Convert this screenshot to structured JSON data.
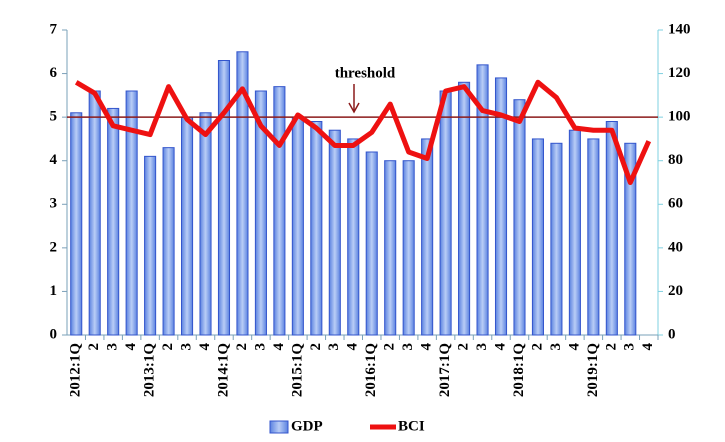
{
  "chart_data": {
    "type": "bar-line",
    "categories": [
      "2012:1Q",
      "2",
      "3",
      "4",
      "2013:1Q",
      "2",
      "3",
      "4",
      "2014:1Q",
      "2",
      "3",
      "4",
      "2015:1Q",
      "2",
      "3",
      "4",
      "2016:1Q",
      "2",
      "3",
      "4",
      "2017:1Q",
      "2",
      "3",
      "4",
      "2018:1Q",
      "2",
      "3",
      "4",
      "2019:1Q",
      "2",
      "3",
      "4"
    ],
    "series": [
      {
        "name": "GDP",
        "type": "bar",
        "color": "#8fb0ee",
        "edge": "#3355cc",
        "axis": "y",
        "values": [
          5.1,
          5.6,
          5.2,
          5.6,
          4.1,
          4.3,
          5.0,
          5.1,
          6.3,
          6.5,
          5.6,
          5.7,
          5.0,
          4.9,
          4.7,
          4.5,
          4.2,
          4.0,
          4.0,
          4.5,
          5.6,
          5.8,
          6.2,
          5.9,
          5.4,
          4.5,
          4.4,
          4.7,
          4.5,
          4.9,
          4.4,
          null
        ]
      },
      {
        "name": "BCI",
        "type": "line",
        "color": "#ee1111",
        "axis": "y2",
        "values": [
          116,
          111,
          96,
          94,
          92,
          114,
          99,
          92,
          102,
          113,
          96,
          87,
          101,
          95,
          87,
          87,
          93,
          106,
          84,
          81,
          112,
          114,
          103,
          101,
          98,
          116,
          109,
          95,
          94,
          94,
          70,
          89
        ]
      }
    ],
    "ylim": [
      0,
      7
    ],
    "yticks": [
      0,
      1,
      2,
      3,
      4,
      5,
      6,
      7
    ],
    "y2lim": [
      0,
      140
    ],
    "y2ticks": [
      0,
      20,
      40,
      60,
      80,
      100,
      120,
      140
    ],
    "threshold": {
      "label": "threshold",
      "value": 5,
      "color": "#8b1a1a"
    },
    "legend": "bottom"
  }
}
